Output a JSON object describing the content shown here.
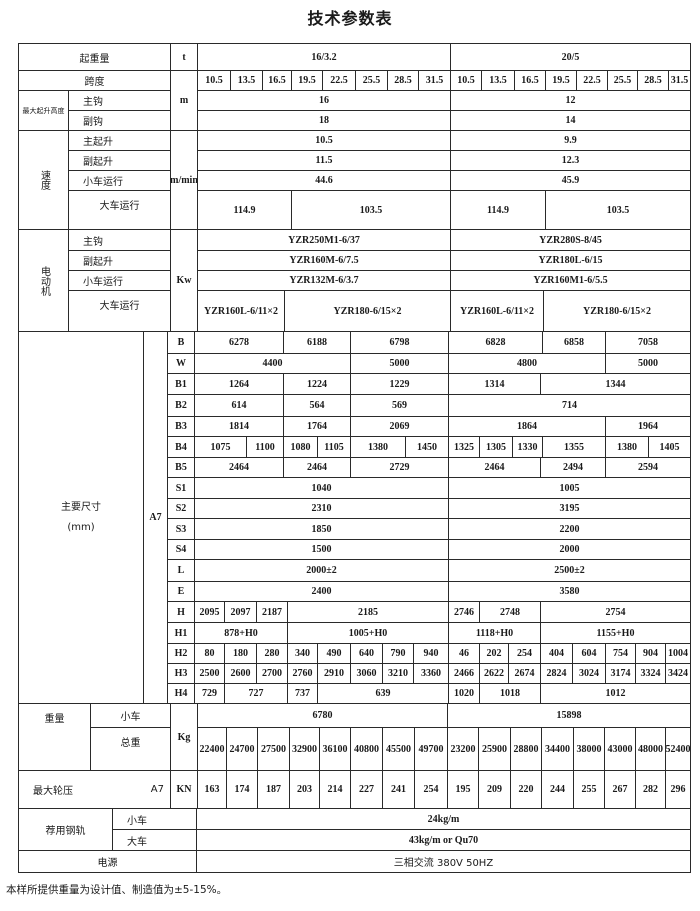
{
  "title": "技术参数表",
  "capacity": {
    "label": "起重量",
    "unit": "t",
    "values": [
      "16/3.2",
      "20/5"
    ]
  },
  "span": {
    "label": "跨度",
    "values": [
      "10.5",
      "13.5",
      "16.5",
      "19.5",
      "22.5",
      "25.5",
      "28.5",
      "31.5",
      "10.5",
      "13.5",
      "16.5",
      "19.5",
      "22.5",
      "25.5",
      "28.5",
      "31.5"
    ]
  },
  "lift_height": {
    "label": "最大起升高度",
    "unit": "m",
    "main_hook": {
      "label": "主钩",
      "values": [
        "16",
        "12"
      ]
    },
    "aux_hook": {
      "label": "副钩",
      "values": [
        "18",
        "14"
      ]
    }
  },
  "speed": {
    "label": "速度",
    "unit": "m/min",
    "rows": [
      {
        "label": "主起升",
        "values": [
          "10.5",
          "9.9"
        ]
      },
      {
        "label": "副起升",
        "values": [
          "11.5",
          "12.3"
        ]
      },
      {
        "label": "小车运行",
        "values": [
          "44.6",
          "45.9"
        ]
      },
      {
        "label": "大车运行",
        "values": [
          "114.9",
          "103.5",
          "114.9",
          "103.5"
        ]
      }
    ]
  },
  "motor": {
    "label": "电动机",
    "unit": "Kw",
    "rows": [
      {
        "label": "主钩",
        "values": [
          "YZR250M1-6/37",
          "YZR280S-8/45"
        ]
      },
      {
        "label": "副起升",
        "values": [
          "YZR160M-6/7.5",
          "YZR180L-6/15"
        ]
      },
      {
        "label": "小车运行",
        "values": [
          "YZR132M-6/3.7",
          "YZR160M1-6/5.5"
        ]
      },
      {
        "label": "大车运行",
        "values": [
          "YZR160L-6/11×2",
          "YZR180-6/15×2",
          "YZR160L-6/11×2",
          "YZR180-6/15×2"
        ]
      }
    ]
  },
  "dimensions": {
    "label": "主要尺寸",
    "unit": "(mm)",
    "work_class": "A7",
    "rows": [
      {
        "param": "B",
        "values": [
          "6278",
          "6188",
          "6798",
          "6828",
          "6858",
          "7058"
        ]
      },
      {
        "param": "W",
        "values": [
          "4400",
          "5000",
          "4800",
          "5000"
        ]
      },
      {
        "param": "B1",
        "values": [
          "1264",
          "1224",
          "1229",
          "1314",
          "1344"
        ]
      },
      {
        "param": "B2",
        "values": [
          "614",
          "564",
          "569",
          "714"
        ]
      },
      {
        "param": "B3",
        "values": [
          "1814",
          "1764",
          "2069",
          "1864",
          "1964"
        ]
      },
      {
        "param": "B4",
        "values": [
          "1075",
          "1100",
          "1080",
          "1105",
          "1380",
          "1450",
          "1325",
          "1305",
          "1330",
          "1355",
          "1380",
          "1405"
        ]
      },
      {
        "param": "B5",
        "values": [
          "2464",
          "2464",
          "2729",
          "2464",
          "2494",
          "2594"
        ]
      },
      {
        "param": "S1",
        "values": [
          "1040",
          "1005"
        ]
      },
      {
        "param": "S2",
        "values": [
          "2310",
          "3195"
        ]
      },
      {
        "param": "S3",
        "values": [
          "1850",
          "2200"
        ]
      },
      {
        "param": "S4",
        "values": [
          "1500",
          "2000"
        ]
      },
      {
        "param": "L",
        "values": [
          "2000±2",
          "2500±2"
        ]
      },
      {
        "param": "E",
        "values": [
          "2400",
          "3580"
        ]
      },
      {
        "param": "H",
        "values": [
          "2095",
          "2097",
          "2187",
          "2185",
          "2746",
          "2748",
          "2754"
        ]
      },
      {
        "param": "H1",
        "values": [
          "878+H0",
          "1005+H0",
          "1118+H0",
          "1155+H0"
        ]
      },
      {
        "param": "H2",
        "values": [
          "80",
          "180",
          "280",
          "340",
          "490",
          "640",
          "790",
          "940",
          "46",
          "202",
          "254",
          "404",
          "604",
          "754",
          "904",
          "1004"
        ]
      },
      {
        "param": "H3",
        "values": [
          "2500",
          "2600",
          "2700",
          "2760",
          "2910",
          "3060",
          "3210",
          "3360",
          "2466",
          "2622",
          "2674",
          "2824",
          "3024",
          "3174",
          "3324",
          "3424"
        ]
      },
      {
        "param": "H4",
        "values": [
          "729",
          "727",
          "737",
          "639",
          "1020",
          "1018",
          "1012"
        ]
      }
    ]
  },
  "weight": {
    "label": "重量",
    "unit": "Kg",
    "trolley": {
      "label": "小车",
      "values": [
        "6780",
        "15898"
      ]
    },
    "total": {
      "label": "总重",
      "values": [
        "22400",
        "24700",
        "27500",
        "32900",
        "36100",
        "40800",
        "45500",
        "49700",
        "23200",
        "25900",
        "28800",
        "34400",
        "38000",
        "43000",
        "48000",
        "52400"
      ]
    }
  },
  "wheel_load": {
    "label": "最大轮压",
    "work_class": "A7",
    "unit": "KN",
    "values": [
      "163",
      "174",
      "187",
      "203",
      "214",
      "227",
      "241",
      "254",
      "195",
      "209",
      "220",
      "244",
      "255",
      "267",
      "282",
      "296"
    ]
  },
  "rail": {
    "label": "荐用钢轨",
    "trolley": {
      "label": "小车",
      "value": "24kg/m"
    },
    "crane": {
      "label": "大车",
      "value": "43kg/m  or  Qu70"
    }
  },
  "power": {
    "label": "电源",
    "value": "三相交流  380V  50HZ"
  },
  "note": "本样所提供重量为设计值、制造值为±5-15%。"
}
